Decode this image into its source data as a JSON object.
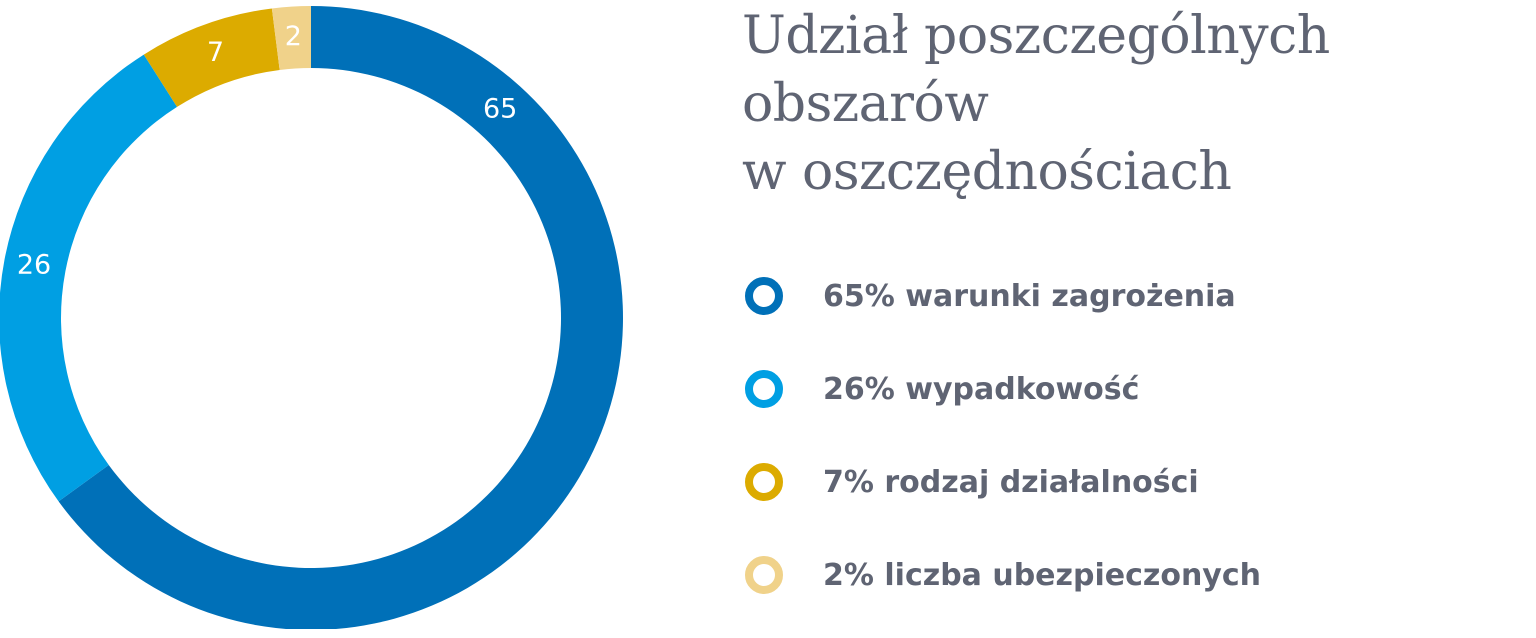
{
  "chart_data": {
    "type": "pie",
    "title_lines": [
      "Udział poszczególnych",
      "obszarów",
      "w oszczędnościach"
    ],
    "slices": [
      {
        "value": 65,
        "label": "65",
        "legend": "65% warunki zagrożenia",
        "color": "#0070b8"
      },
      {
        "value": 26,
        "label": "26",
        "legend": "26% wypadkowość",
        "color": "#009fe3"
      },
      {
        "value": 7,
        "label": "7",
        "legend": "7% rodzaj działalności",
        "color": "#dcab00"
      },
      {
        "value": 2,
        "label": "2",
        "legend": "2% liczba ubezpieczonych",
        "color": "#f0d28a"
      }
    ],
    "legend_position": "right"
  }
}
